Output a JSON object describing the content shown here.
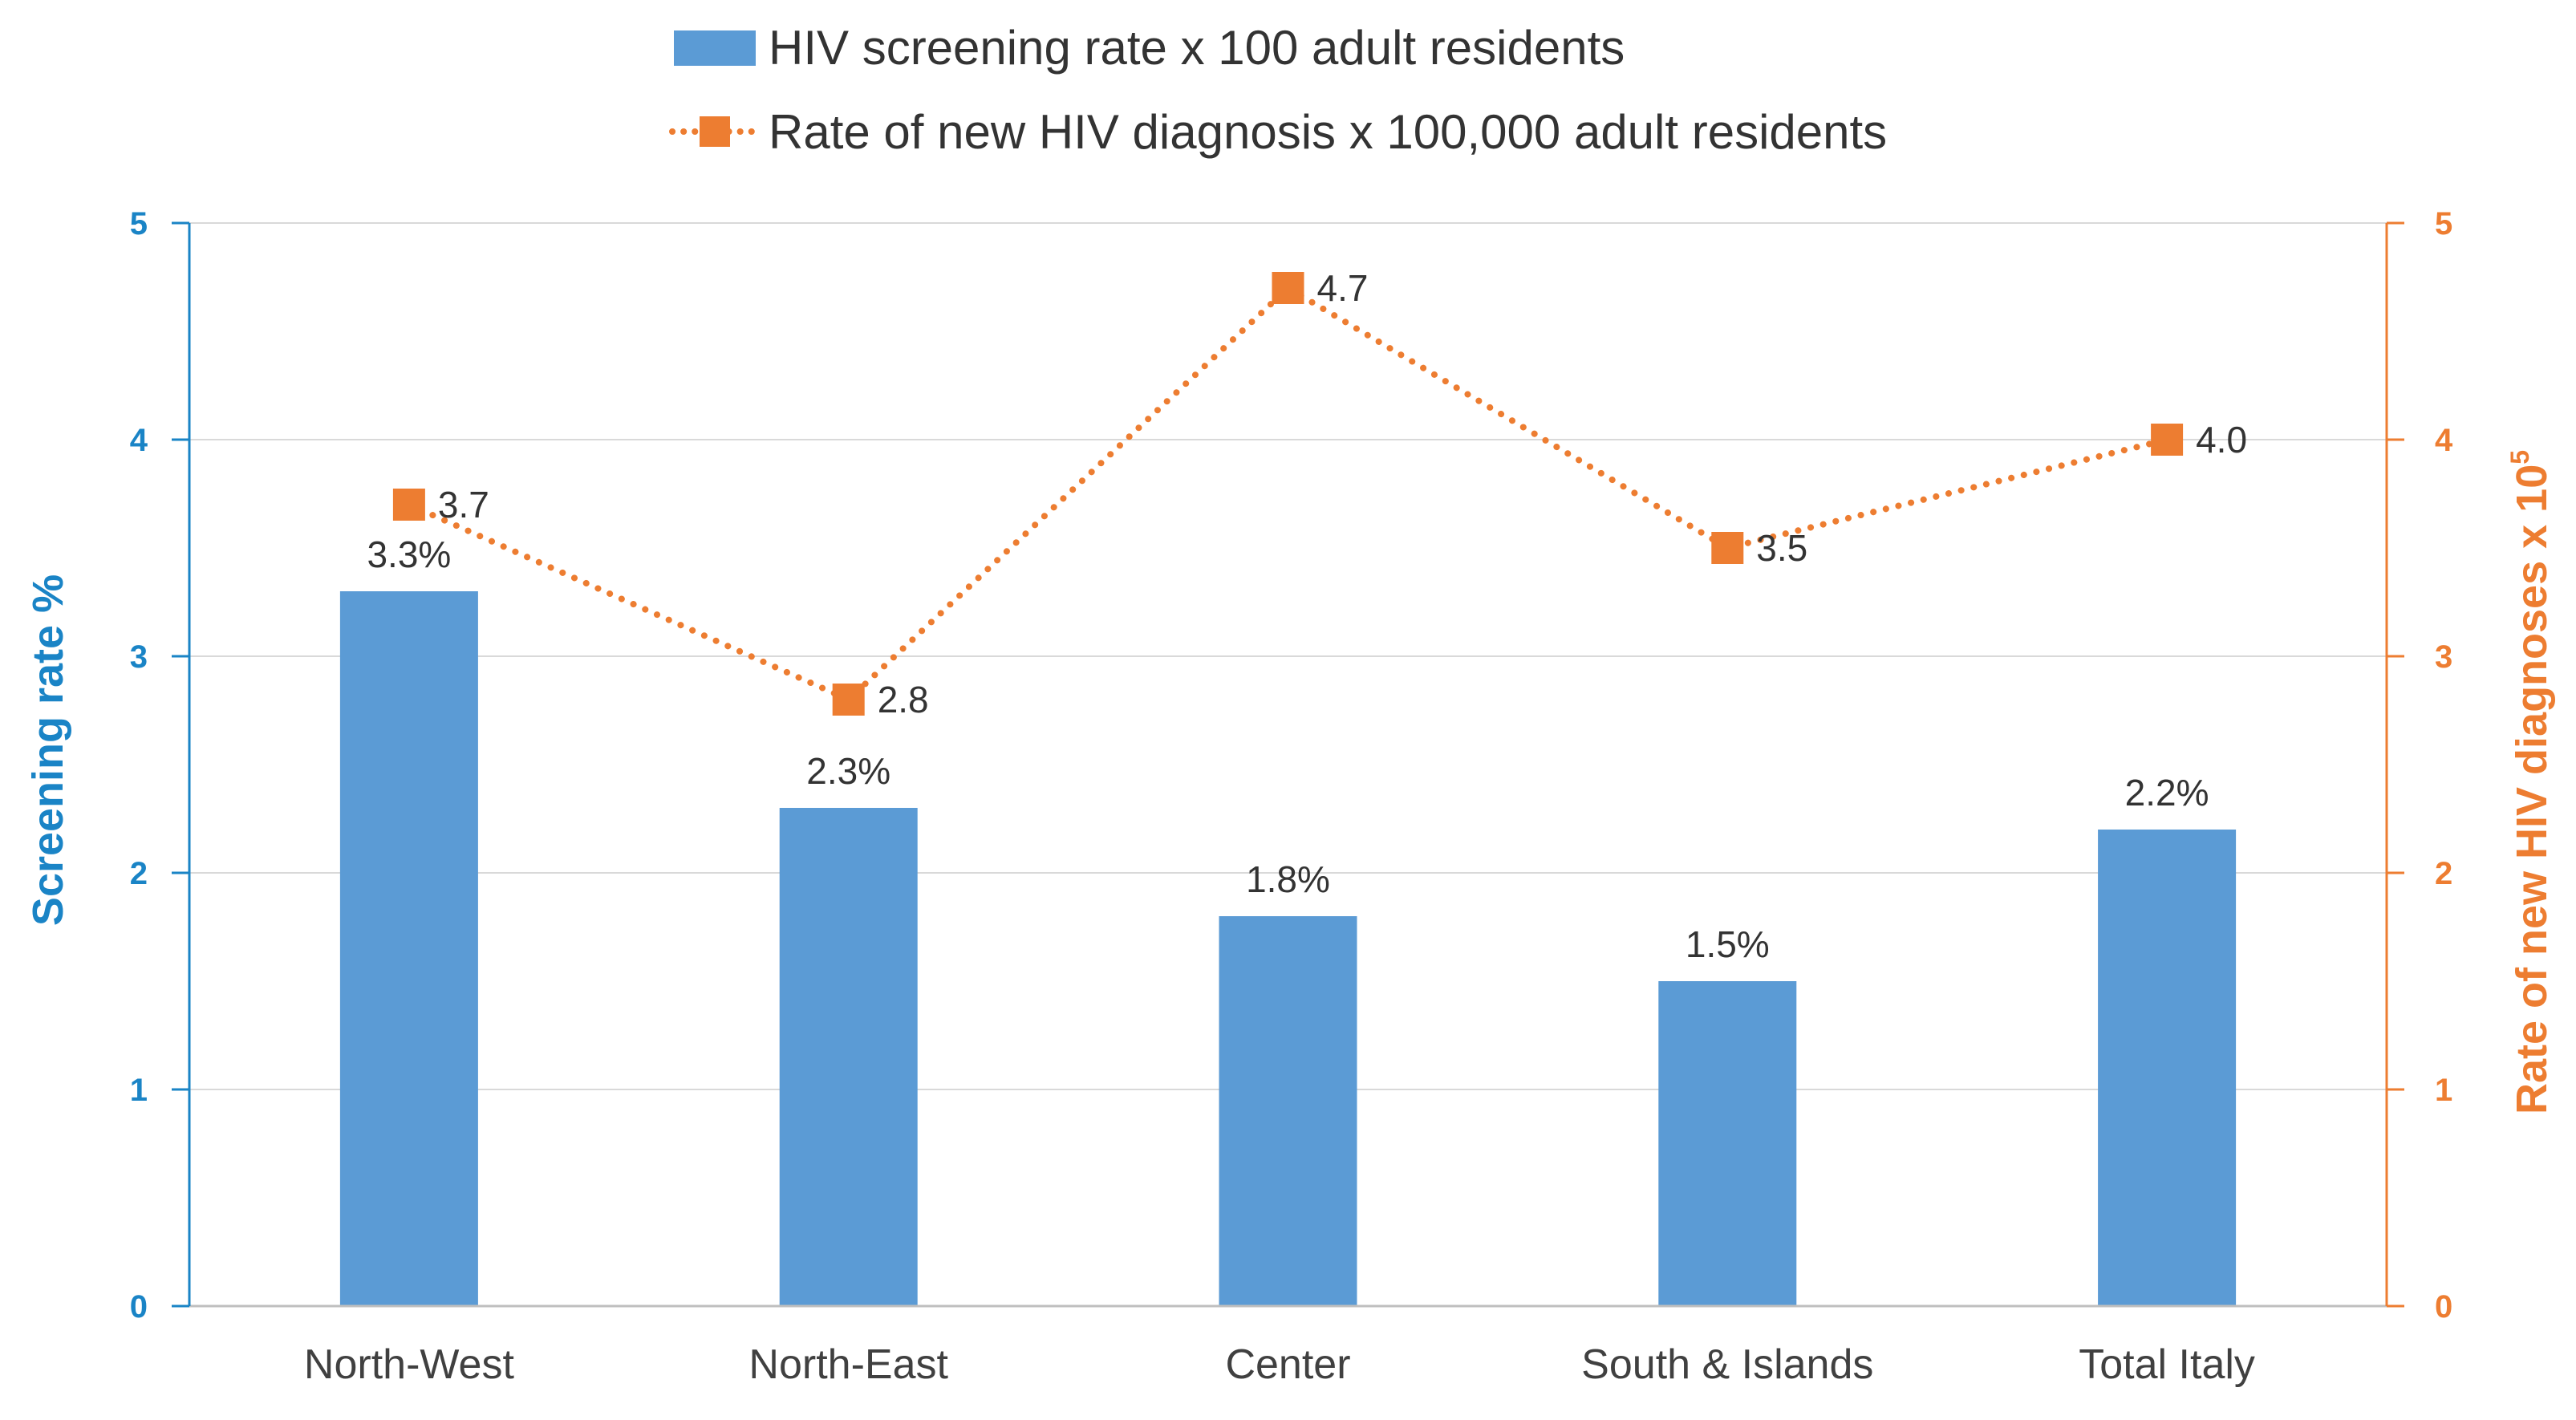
{
  "colors": {
    "bar": "#5b9bd5",
    "line": "#ed7d31",
    "left_axis": "#1a84c6",
    "right_axis": "#ed7d31",
    "grid": "#d9d9d9",
    "text": "#333333"
  },
  "chart_data": {
    "type": "bar",
    "categories": [
      "North-West",
      "North-East",
      "Center",
      "South & Islands",
      "Total Italy"
    ],
    "series": [
      {
        "name": "HIV screening rate x 100 adult residents",
        "type": "bar",
        "axis": "left",
        "values": [
          3.3,
          2.3,
          1.8,
          1.5,
          2.2
        ],
        "labels": [
          "3.3%",
          "2.3%",
          "1.8%",
          "1.5%",
          "2.2%"
        ]
      },
      {
        "name": "Rate of new HIV diagnosis x 100,000 adult residents",
        "type": "line",
        "style": "dotted",
        "marker": "square",
        "axis": "right",
        "values": [
          3.7,
          2.8,
          4.7,
          3.5,
          4.0
        ],
        "labels": [
          "3.7",
          "2.8",
          "4.7",
          "3.5",
          "4.0"
        ]
      }
    ],
    "y_left": {
      "label": "Screening rate %",
      "lim": [
        0,
        5
      ],
      "ticks": [
        0,
        1,
        2,
        3,
        4,
        5
      ]
    },
    "y_right": {
      "label": "Rate of new HIV diagnoses  x 10",
      "label_superscript": "5",
      "lim": [
        0,
        5
      ],
      "ticks": [
        0,
        1,
        2,
        3,
        4,
        5
      ]
    },
    "grid": true,
    "legend_position": "top-center"
  }
}
